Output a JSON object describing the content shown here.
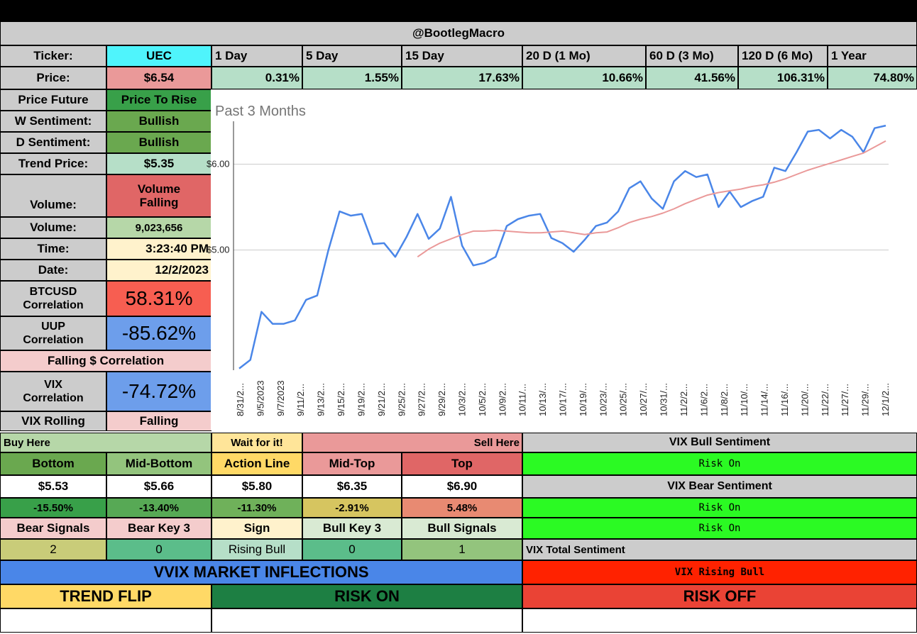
{
  "header": {
    "handle": "@BootlegMacro"
  },
  "ticker": {
    "label": "Ticker:",
    "value": "UEC"
  },
  "periods": [
    "1 Day",
    "5 Day",
    "15 Day",
    "20 D (1 Mo)",
    "60 D (3 Mo)",
    "120 D (6 Mo)",
    "1 Year"
  ],
  "price": {
    "label": "Price:",
    "value": "$6.54"
  },
  "returns": [
    "0.31%",
    "1.55%",
    "17.63%",
    "10.66%",
    "41.56%",
    "106.31%",
    "74.80%"
  ],
  "left_panel": {
    "price_future": {
      "label": "Price Future",
      "value": "Price To Rise"
    },
    "w_sentiment": {
      "label": "W Sentiment:",
      "value": "Bullish"
    },
    "d_sentiment": {
      "label": "D Sentiment:",
      "value": "Bullish"
    },
    "trend_price": {
      "label": "Trend Price:",
      "value": "$5.35"
    },
    "volume_status": {
      "label": "Volume:",
      "value_line1": "Volume",
      "value_line2": "Falling"
    },
    "volume": {
      "label": "Volume:",
      "value": "9,023,656"
    },
    "time": {
      "label": "Time:",
      "value": "3:23:40 PM"
    },
    "date": {
      "label": "Date:",
      "value": "12/2/2023"
    },
    "btc": {
      "label_line1": "BTCUSD",
      "label_line2": "Correlation",
      "value": "58.31%"
    },
    "uup": {
      "label_line1": "UUP",
      "label_line2": "Correlation",
      "value": "-85.62%"
    },
    "falling_corr": {
      "label": "Falling $ Correlation"
    },
    "vix_corr": {
      "label_line1": "VIX",
      "label_line2": "Correlation",
      "value": "-74.72%"
    },
    "vix_rolling": {
      "label": "VIX Rolling",
      "value": "Falling"
    }
  },
  "levels": {
    "buy_here": "Buy Here",
    "wait": "Wait for it!",
    "sell_here": "Sell Here",
    "headers": [
      "Bottom",
      "Mid-Bottom",
      "Action Line",
      "Mid-Top",
      "Top"
    ],
    "prices": [
      "$5.53",
      "$5.66",
      "$5.80",
      "$6.35",
      "$6.90"
    ],
    "pct": [
      "-15.50%",
      "-13.40%",
      "-11.30%",
      "-2.91%",
      "5.48%"
    ],
    "signal_headers": [
      "Bear Signals",
      "Bear Key 3",
      "Sign",
      "Bull Key 3",
      "Bull Signals"
    ],
    "signal_values": [
      "2",
      "0",
      "Rising Bull",
      "0",
      "1"
    ]
  },
  "vix": {
    "bull_label": "VIX Bull Sentiment",
    "bull_value": "Risk On",
    "bear_label": "VIX Bear Sentiment",
    "bear_value1": "Risk On",
    "bear_value2": "Risk On",
    "total_label": "VIX Total Sentiment",
    "total_value": "VIX Rising Bull"
  },
  "inflections": {
    "title": "VVIX MARKET INFLECTIONS",
    "trend_flip": "TREND FLIP",
    "risk_on": "RISK ON",
    "risk_off": "RISK OFF"
  },
  "colors": {
    "grey": "#cccccc",
    "cyan": "#4ff4fc",
    "pink": "#ea9999",
    "mint": "#b6dfc8",
    "green_dark": "#38a049",
    "green_mid": "#6aa84f",
    "green_light": "#b6d7a8",
    "yellow_light": "#fff2cc",
    "red": "#e06666",
    "red_bright": "#f75e51",
    "blue_cell": "#6d9eeb",
    "pink_light": "#f4cccc",
    "lime": "#2bfa23",
    "blue_banner": "#4a86e8",
    "orange_red": "#ff2200",
    "gold": "#ffd966",
    "green_risk": "#1d7f43",
    "red_risk": "#ea4335"
  },
  "chart_data": {
    "type": "line",
    "title": "Past 3 Months",
    "y_tick_labels": [
      "$6.00",
      "$5.00"
    ],
    "x_tick_labels": [
      "8/31/2...",
      "9/5/2023",
      "9/7/2023",
      "9/11/2...",
      "9/13/2...",
      "9/15/2...",
      "9/19/2...",
      "9/21/2...",
      "9/25/2...",
      "9/27/2...",
      "9/29/2...",
      "10/3/2...",
      "10/5/2...",
      "10/9/2...",
      "10/11/...",
      "10/13/...",
      "10/17/...",
      "10/19/...",
      "10/23/...",
      "10/25/...",
      "10/27/...",
      "10/31/...",
      "11/2/2...",
      "11/6/2...",
      "11/8/2...",
      "11/10/...",
      "11/14/...",
      "11/16/...",
      "11/20/...",
      "11/22/...",
      "11/27/...",
      "11/29/...",
      "12/1/2..."
    ],
    "ylim": [
      3.6,
      6.5
    ],
    "series": [
      {
        "color": "#4a86e8",
        "values": [
          3.62,
          3.72,
          4.28,
          4.14,
          4.14,
          4.18,
          4.42,
          4.47,
          5.0,
          5.45,
          5.4,
          5.42,
          5.07,
          5.08,
          4.92,
          5.15,
          5.42,
          5.13,
          5.25,
          5.62,
          5.05,
          4.82,
          4.85,
          4.92,
          5.28,
          5.36,
          5.4,
          5.42,
          5.14,
          5.08,
          4.98,
          5.12,
          5.28,
          5.32,
          5.45,
          5.72,
          5.8,
          5.6,
          5.48,
          5.8,
          5.92,
          5.85,
          5.88,
          5.5,
          5.68,
          5.5,
          5.57,
          5.62,
          5.96,
          5.92,
          6.14,
          6.38,
          6.4,
          6.3,
          6.4,
          6.32,
          6.14,
          6.42,
          6.45
        ]
      },
      {
        "color": "#ea9999",
        "values": [
          null,
          null,
          null,
          null,
          null,
          null,
          null,
          null,
          null,
          null,
          null,
          null,
          null,
          null,
          null,
          null,
          4.92,
          5.01,
          5.08,
          5.13,
          5.18,
          5.22,
          5.22,
          5.23,
          5.22,
          5.21,
          5.2,
          5.2,
          5.21,
          5.22,
          5.2,
          5.18,
          5.2,
          5.21,
          5.26,
          5.32,
          5.36,
          5.39,
          5.43,
          5.48,
          5.54,
          5.59,
          5.64,
          5.67,
          5.69,
          5.71,
          5.74,
          5.76,
          5.79,
          5.83,
          5.88,
          5.93,
          5.97,
          6.01,
          6.05,
          6.09,
          6.13,
          6.2,
          6.27
        ]
      }
    ]
  }
}
